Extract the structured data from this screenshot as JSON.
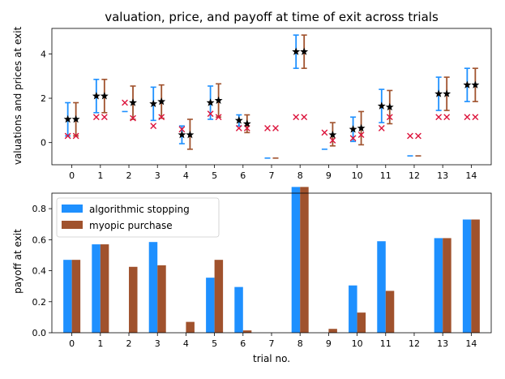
{
  "chart_data": [
    {
      "type": "errorbar",
      "title": "valuation, price, and payoff at time of exit across trials",
      "xlabel": "",
      "ylabel": "valuations and prices at exit",
      "ylim": [
        -1,
        5.15
      ],
      "yticks": [
        0,
        2,
        4
      ],
      "categories": [
        "0",
        "1",
        "2",
        "3",
        "4",
        "5",
        "6",
        "7",
        "8",
        "9",
        "10",
        "11",
        "12",
        "13",
        "14"
      ],
      "series": [
        {
          "name": "algorithmic stopping",
          "color": "#1e90ff",
          "mean": [
            1.05,
            2.1,
            null,
            1.75,
            0.35,
            1.8,
            1.0,
            null,
            4.1,
            null,
            0.6,
            1.65,
            null,
            2.2,
            2.6
          ],
          "low": [
            0.3,
            1.35,
            1.4,
            1.0,
            -0.05,
            1.05,
            0.75,
            -0.7,
            3.35,
            -0.3,
            0.05,
            0.9,
            -0.6,
            1.45,
            1.85
          ],
          "high": [
            1.8,
            2.85,
            1.4,
            2.5,
            0.75,
            2.55,
            1.25,
            -0.7,
            4.85,
            -0.3,
            1.15,
            2.4,
            -0.6,
            2.95,
            3.35
          ],
          "price": [
            0.3,
            1.15,
            1.8,
            0.75,
            0.6,
            1.3,
            0.65,
            0.65,
            1.15,
            0.45,
            0.2,
            0.65,
            0.3,
            1.15,
            1.15
          ]
        },
        {
          "name": "myopic purchase",
          "color": "#a0522d",
          "mean": [
            1.05,
            2.1,
            1.8,
            1.85,
            0.35,
            1.9,
            0.85,
            null,
            4.1,
            0.35,
            0.65,
            1.6,
            null,
            2.2,
            2.6
          ],
          "low": [
            0.3,
            1.35,
            1.05,
            1.1,
            -0.3,
            1.15,
            0.45,
            -0.7,
            3.35,
            -0.15,
            -0.1,
            0.85,
            -0.6,
            1.45,
            1.85
          ],
          "high": [
            1.8,
            2.85,
            2.55,
            2.6,
            1.05,
            2.65,
            1.25,
            -0.7,
            4.85,
            0.9,
            1.4,
            2.35,
            -0.6,
            2.95,
            3.35
          ],
          "price": [
            0.3,
            1.15,
            1.1,
            1.15,
            null,
            1.15,
            0.65,
            0.65,
            1.15,
            0.1,
            0.35,
            1.15,
            0.3,
            1.15,
            1.15
          ]
        }
      ],
      "markers": {
        "mean": "black star",
        "price": "crimson x"
      }
    },
    {
      "type": "bar",
      "title": "",
      "xlabel": "trial no.",
      "ylabel": "payoff at exit",
      "ylim": [
        0,
        0.9
      ],
      "yticks": [
        0.0,
        0.2,
        0.4,
        0.6,
        0.8
      ],
      "categories": [
        "0",
        "1",
        "2",
        "3",
        "4",
        "5",
        "6",
        "7",
        "8",
        "9",
        "10",
        "11",
        "12",
        "13",
        "14"
      ],
      "legend_position": "upper-left",
      "series": [
        {
          "name": "algorithmic stopping",
          "color": "#1e90ff",
          "values": [
            0.47,
            0.57,
            0.0,
            0.585,
            0.0,
            0.355,
            0.295,
            0.0,
            0.94,
            0.0,
            0.305,
            0.59,
            0.0,
            0.61,
            0.73
          ]
        },
        {
          "name": "myopic purchase",
          "color": "#a0522d",
          "values": [
            0.47,
            0.57,
            0.425,
            0.435,
            0.07,
            0.47,
            0.015,
            0.0,
            0.94,
            0.025,
            0.13,
            0.27,
            0.0,
            0.61,
            0.73
          ]
        }
      ]
    }
  ]
}
